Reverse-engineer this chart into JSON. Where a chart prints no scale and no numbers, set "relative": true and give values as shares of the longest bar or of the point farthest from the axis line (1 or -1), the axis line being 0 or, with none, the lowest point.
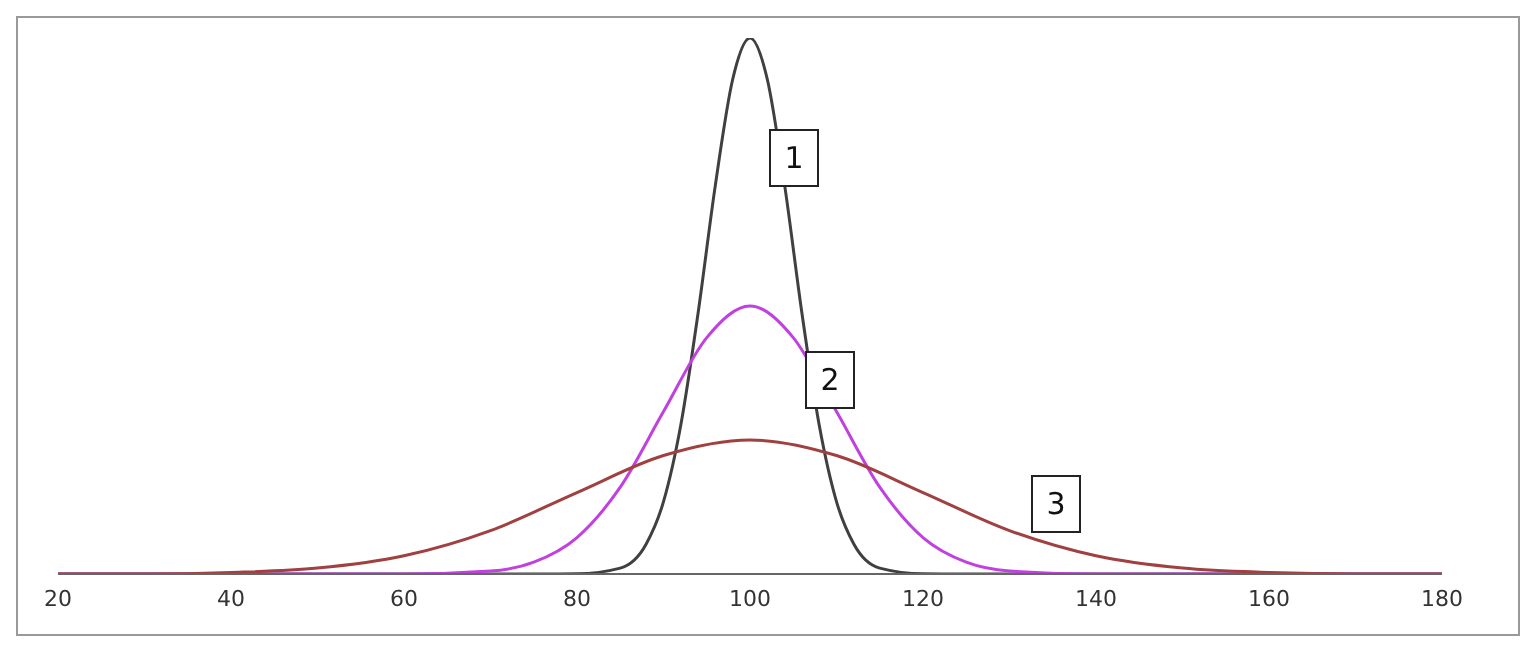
{
  "chart_data": {
    "type": "line",
    "relative": true,
    "xlim": [
      20,
      180
    ],
    "xticks": [
      20,
      40,
      60,
      80,
      100,
      120,
      140,
      160,
      180
    ],
    "marker": "none",
    "line_style": "solid",
    "tick_labels": "x",
    "series": [
      {
        "name": "1",
        "color": "#404040",
        "x": [
          20,
          75,
          80,
          85,
          88,
          90,
          92,
          94,
          96,
          98,
          100,
          102,
          104,
          106,
          108,
          110,
          112,
          115,
          120,
          125,
          180
        ],
        "values": [
          0,
          0,
          0.0003,
          0.011,
          0.056,
          0.135,
          0.278,
          0.487,
          0.726,
          0.923,
          1,
          0.923,
          0.726,
          0.487,
          0.278,
          0.135,
          0.056,
          0.011,
          0.0003,
          0,
          0
        ]
      },
      {
        "name": "2",
        "color": "#c040e0",
        "x": [
          20,
          60,
          70,
          75,
          80,
          85,
          90,
          95,
          100,
          105,
          110,
          115,
          120,
          125,
          130,
          140,
          180
        ],
        "values": [
          0,
          0,
          0.0056,
          0.022,
          0.068,
          0.162,
          0.303,
          0.441,
          0.5,
          0.441,
          0.303,
          0.162,
          0.068,
          0.022,
          0.0056,
          0,
          0
        ]
      },
      {
        "name": "3",
        "color": "#a04040",
        "x": [
          20,
          30,
          40,
          50,
          60,
          70,
          80,
          90,
          100,
          110,
          120,
          130,
          140,
          150,
          160,
          170,
          180
        ],
        "values": [
          0,
          0,
          0.0028,
          0.011,
          0.034,
          0.081,
          0.152,
          0.221,
          0.25,
          0.221,
          0.152,
          0.081,
          0.034,
          0.011,
          0.0028,
          0,
          0
        ]
      }
    ]
  }
}
